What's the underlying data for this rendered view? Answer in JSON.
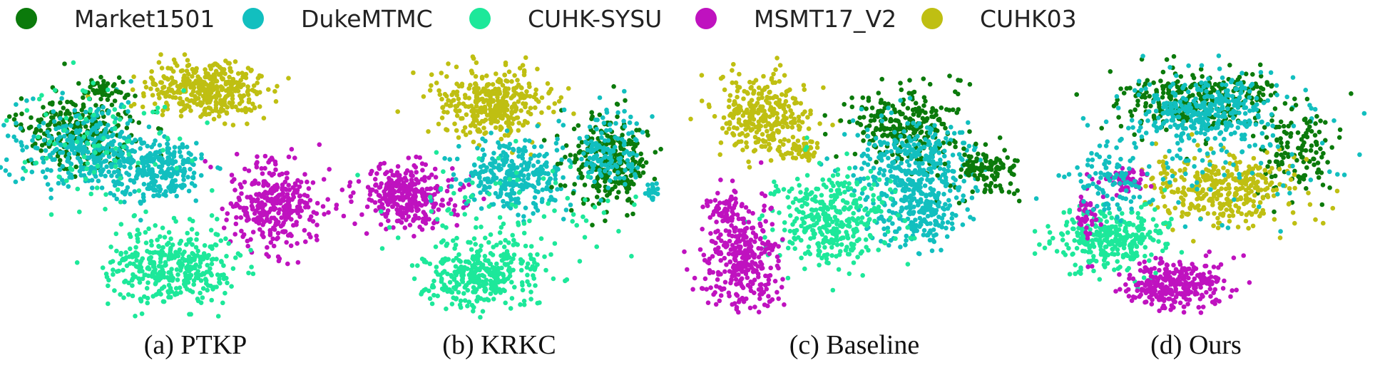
{
  "chart_data": [
    {
      "type": "scatter",
      "caption": "(a) PTKP",
      "legend_placement": "top",
      "series": [
        {
          "name": "Market1501",
          "color": "#0b7a0b"
        },
        {
          "name": "DukeMTMC",
          "color": "#12bfbf"
        },
        {
          "name": "CUHK-SYSU",
          "color": "#1de89a"
        },
        {
          "name": "MSMT17_V2",
          "color": "#bf12bf"
        },
        {
          "name": "CUHK03",
          "color": "#bfbf12"
        }
      ]
    },
    {
      "type": "scatter",
      "caption": "(b) KRKC",
      "series": [
        {
          "name": "Market1501",
          "color": "#0b7a0b"
        },
        {
          "name": "DukeMTMC",
          "color": "#12bfbf"
        },
        {
          "name": "CUHK-SYSU",
          "color": "#1de89a"
        },
        {
          "name": "MSMT17_V2",
          "color": "#bf12bf"
        },
        {
          "name": "CUHK03",
          "color": "#bfbf12"
        }
      ]
    },
    {
      "type": "scatter",
      "caption": "(c) Baseline",
      "series": [
        {
          "name": "Market1501",
          "color": "#0b7a0b"
        },
        {
          "name": "DukeMTMC",
          "color": "#12bfbf"
        },
        {
          "name": "CUHK-SYSU",
          "color": "#1de89a"
        },
        {
          "name": "MSMT17_V2",
          "color": "#bf12bf"
        },
        {
          "name": "CUHK03",
          "color": "#bfbf12"
        }
      ]
    },
    {
      "type": "scatter",
      "caption": "(d) Ours",
      "series": [
        {
          "name": "Market1501",
          "color": "#0b7a0b"
        },
        {
          "name": "DukeMTMC",
          "color": "#12bfbf"
        },
        {
          "name": "CUHK-SYSU",
          "color": "#1de89a"
        },
        {
          "name": "MSMT17_V2",
          "color": "#bf12bf"
        },
        {
          "name": "CUHK03",
          "color": "#bfbf12"
        }
      ]
    }
  ],
  "legend": [
    {
      "name": "Market1501",
      "color": "#0b7a0b"
    },
    {
      "name": "DukeMTMC",
      "color": "#12bfbf"
    },
    {
      "name": "CUHK-SYSU",
      "color": "#1de89a"
    },
    {
      "name": "MSMT17_V2",
      "color": "#bf12bf"
    },
    {
      "name": "CUHK03",
      "color": "#bfbf12"
    }
  ]
}
